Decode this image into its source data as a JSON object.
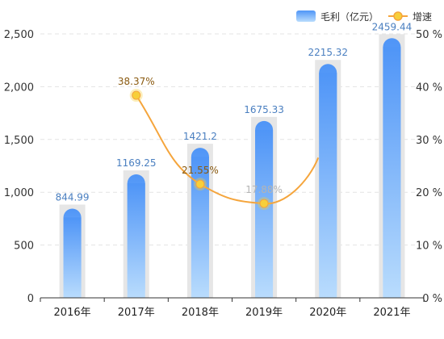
{
  "chart_data": {
    "type": "bar",
    "categories": [
      "2016年",
      "2017年",
      "2018年",
      "2019年",
      "2020年",
      "2021年"
    ],
    "series": [
      {
        "name": "毛利（亿元）",
        "type": "bar",
        "axis": "left",
        "values": [
          844.99,
          1169.25,
          1421.2,
          1675.33,
          2215.32,
          2459.44
        ],
        "labels": [
          "844.99",
          "1169.25",
          "1421.2",
          "1675.33",
          "2215.32",
          "2459.44"
        ]
      },
      {
        "name": "增速",
        "type": "line",
        "axis": "right",
        "values": [
          null,
          38.37,
          21.55,
          17.88,
          null,
          null
        ],
        "labels": [
          "",
          "38.37%",
          "21.55%",
          "17.88%",
          "",
          ""
        ]
      }
    ],
    "y_left": {
      "ylim": [
        0,
        2500
      ],
      "ticks": [
        "0",
        "500",
        "1,000",
        "1,500",
        "2,000",
        "2,500"
      ]
    },
    "y_right": {
      "ylim": [
        0,
        50
      ],
      "ticks": [
        "0 %",
        "10 %",
        "20 %",
        "30 %",
        "40 %",
        "50 %"
      ]
    },
    "grid": "horizontal dashed",
    "legend_position": "top-right",
    "colors": {
      "bar_top": "#4f95f7",
      "bar_bottom": "#b9dcfd",
      "bar_backdrop": "#e6e6e6",
      "line": "#f5a53c",
      "marker_fill": "#f7cf3a",
      "bar_label": "#4a7fc0",
      "growth_label_1": "#8a5a10",
      "growth_label_2": "#8a5a10",
      "growth_label_3": "#b4b4b4"
    }
  }
}
